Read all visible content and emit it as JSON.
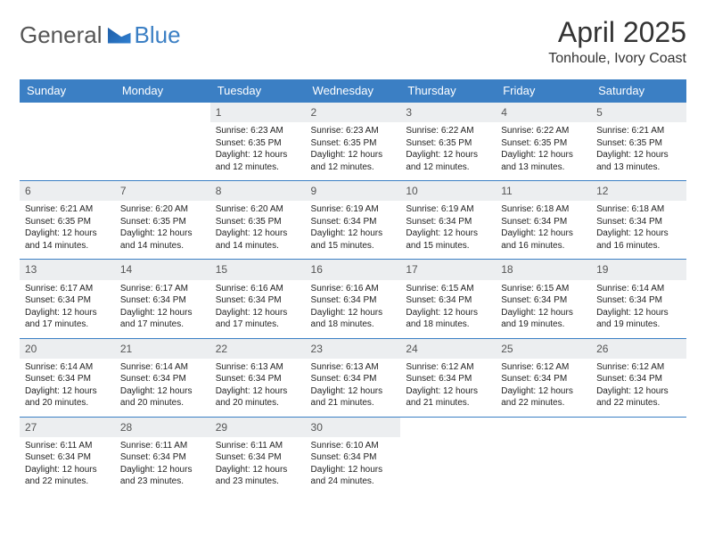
{
  "brand": {
    "text1": "General",
    "text2": "Blue"
  },
  "header": {
    "title": "April 2025",
    "location": "Tonhoule, Ivory Coast"
  },
  "colors": {
    "accent": "#3b7fc4",
    "daybar": "#eceef0",
    "text": "#222222",
    "bg": "#ffffff"
  },
  "calendar": {
    "columns": [
      "Sunday",
      "Monday",
      "Tuesday",
      "Wednesday",
      "Thursday",
      "Friday",
      "Saturday"
    ],
    "weeks": [
      [
        null,
        null,
        {
          "n": "1",
          "sr": "6:23 AM",
          "ss": "6:35 PM",
          "dl": "12 hours and 12 minutes."
        },
        {
          "n": "2",
          "sr": "6:23 AM",
          "ss": "6:35 PM",
          "dl": "12 hours and 12 minutes."
        },
        {
          "n": "3",
          "sr": "6:22 AM",
          "ss": "6:35 PM",
          "dl": "12 hours and 12 minutes."
        },
        {
          "n": "4",
          "sr": "6:22 AM",
          "ss": "6:35 PM",
          "dl": "12 hours and 13 minutes."
        },
        {
          "n": "5",
          "sr": "6:21 AM",
          "ss": "6:35 PM",
          "dl": "12 hours and 13 minutes."
        }
      ],
      [
        {
          "n": "6",
          "sr": "6:21 AM",
          "ss": "6:35 PM",
          "dl": "12 hours and 14 minutes."
        },
        {
          "n": "7",
          "sr": "6:20 AM",
          "ss": "6:35 PM",
          "dl": "12 hours and 14 minutes."
        },
        {
          "n": "8",
          "sr": "6:20 AM",
          "ss": "6:35 PM",
          "dl": "12 hours and 14 minutes."
        },
        {
          "n": "9",
          "sr": "6:19 AM",
          "ss": "6:34 PM",
          "dl": "12 hours and 15 minutes."
        },
        {
          "n": "10",
          "sr": "6:19 AM",
          "ss": "6:34 PM",
          "dl": "12 hours and 15 minutes."
        },
        {
          "n": "11",
          "sr": "6:18 AM",
          "ss": "6:34 PM",
          "dl": "12 hours and 16 minutes."
        },
        {
          "n": "12",
          "sr": "6:18 AM",
          "ss": "6:34 PM",
          "dl": "12 hours and 16 minutes."
        }
      ],
      [
        {
          "n": "13",
          "sr": "6:17 AM",
          "ss": "6:34 PM",
          "dl": "12 hours and 17 minutes."
        },
        {
          "n": "14",
          "sr": "6:17 AM",
          "ss": "6:34 PM",
          "dl": "12 hours and 17 minutes."
        },
        {
          "n": "15",
          "sr": "6:16 AM",
          "ss": "6:34 PM",
          "dl": "12 hours and 17 minutes."
        },
        {
          "n": "16",
          "sr": "6:16 AM",
          "ss": "6:34 PM",
          "dl": "12 hours and 18 minutes."
        },
        {
          "n": "17",
          "sr": "6:15 AM",
          "ss": "6:34 PM",
          "dl": "12 hours and 18 minutes."
        },
        {
          "n": "18",
          "sr": "6:15 AM",
          "ss": "6:34 PM",
          "dl": "12 hours and 19 minutes."
        },
        {
          "n": "19",
          "sr": "6:14 AM",
          "ss": "6:34 PM",
          "dl": "12 hours and 19 minutes."
        }
      ],
      [
        {
          "n": "20",
          "sr": "6:14 AM",
          "ss": "6:34 PM",
          "dl": "12 hours and 20 minutes."
        },
        {
          "n": "21",
          "sr": "6:14 AM",
          "ss": "6:34 PM",
          "dl": "12 hours and 20 minutes."
        },
        {
          "n": "22",
          "sr": "6:13 AM",
          "ss": "6:34 PM",
          "dl": "12 hours and 20 minutes."
        },
        {
          "n": "23",
          "sr": "6:13 AM",
          "ss": "6:34 PM",
          "dl": "12 hours and 21 minutes."
        },
        {
          "n": "24",
          "sr": "6:12 AM",
          "ss": "6:34 PM",
          "dl": "12 hours and 21 minutes."
        },
        {
          "n": "25",
          "sr": "6:12 AM",
          "ss": "6:34 PM",
          "dl": "12 hours and 22 minutes."
        },
        {
          "n": "26",
          "sr": "6:12 AM",
          "ss": "6:34 PM",
          "dl": "12 hours and 22 minutes."
        }
      ],
      [
        {
          "n": "27",
          "sr": "6:11 AM",
          "ss": "6:34 PM",
          "dl": "12 hours and 22 minutes."
        },
        {
          "n": "28",
          "sr": "6:11 AM",
          "ss": "6:34 PM",
          "dl": "12 hours and 23 minutes."
        },
        {
          "n": "29",
          "sr": "6:11 AM",
          "ss": "6:34 PM",
          "dl": "12 hours and 23 minutes."
        },
        {
          "n": "30",
          "sr": "6:10 AM",
          "ss": "6:34 PM",
          "dl": "12 hours and 24 minutes."
        },
        null,
        null,
        null
      ]
    ],
    "labels": {
      "sunrise": "Sunrise:",
      "sunset": "Sunset:",
      "daylight": "Daylight:"
    }
  }
}
